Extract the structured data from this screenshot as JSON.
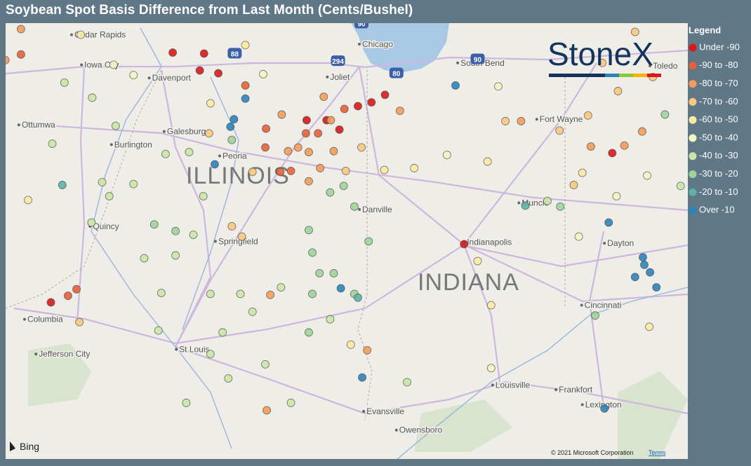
{
  "title": "Soybean Spot Basis Difference from Last Month (Cents/Bushel)",
  "legend": {
    "title": "Legend",
    "items": [
      {
        "label": "Under -90",
        "color": "#d7191c",
        "max": -90
      },
      {
        "label": "-90 to -80",
        "color": "#e8603a",
        "max": -80
      },
      {
        "label": "-80 to -70",
        "color": "#f39b5a",
        "max": -70
      },
      {
        "label": "-70 to -60",
        "color": "#fbc77f",
        "max": -60
      },
      {
        "label": "-60 to -50",
        "color": "#fde9a3",
        "max": -50
      },
      {
        "label": "-50 to -40",
        "color": "#f2f6c2",
        "max": -40
      },
      {
        "label": "-40 to -30",
        "color": "#c9e6a6",
        "max": -30
      },
      {
        "label": "-30 to -20",
        "color": "#9fd39a",
        "max": -20
      },
      {
        "label": "-20 to -10",
        "color": "#5fb0a6",
        "max": -10
      },
      {
        "label": "Over -10",
        "color": "#2b83ba"
      }
    ]
  },
  "map": {
    "brand": "StoneX",
    "provider": "Bing",
    "copyright": "© 2021 Microsoft Corporation",
    "terms": "Terms",
    "states": [
      "ILLINOIS",
      "INDIANA"
    ],
    "places": [
      {
        "name": "Cedar Rapids",
        "lon": -91.67,
        "lat": 41.98
      },
      {
        "name": "Iowa City",
        "lon": -91.53,
        "lat": 41.66
      },
      {
        "name": "Davenport",
        "lon": -90.58,
        "lat": 41.52
      },
      {
        "name": "Ottumwa",
        "lon": -92.41,
        "lat": 41.02
      },
      {
        "name": "Burlington",
        "lon": -91.11,
        "lat": 40.81
      },
      {
        "name": "Galesburg",
        "lon": -90.37,
        "lat": 40.95
      },
      {
        "name": "Peoria",
        "lon": -89.59,
        "lat": 40.69
      },
      {
        "name": "Quincy",
        "lon": -91.41,
        "lat": 39.94
      },
      {
        "name": "Springfield",
        "lon": -89.65,
        "lat": 39.78
      },
      {
        "name": "Columbia",
        "lon": -92.33,
        "lat": 38.95
      },
      {
        "name": "Jefferson City",
        "lon": -92.17,
        "lat": 38.58
      },
      {
        "name": "St Louis",
        "lon": -90.2,
        "lat": 38.63
      },
      {
        "name": "Chicago",
        "lon": -87.63,
        "lat": 41.88
      },
      {
        "name": "Joliet",
        "lon": -88.08,
        "lat": 41.53
      },
      {
        "name": "South Bend",
        "lon": -86.25,
        "lat": 41.68
      },
      {
        "name": "Toledo",
        "lon": -83.55,
        "lat": 41.65
      },
      {
        "name": "Fort Wayne",
        "lon": -85.14,
        "lat": 41.08
      },
      {
        "name": "Danville",
        "lon": -87.63,
        "lat": 40.12
      },
      {
        "name": "Muncie",
        "lon": -85.39,
        "lat": 40.19
      },
      {
        "name": "Indianapolis",
        "lon": -86.16,
        "lat": 39.77
      },
      {
        "name": "Dayton",
        "lon": -84.19,
        "lat": 39.76
      },
      {
        "name": "Cincinnati",
        "lon": -84.51,
        "lat": 39.1
      },
      {
        "name": "Louisville",
        "lon": -85.76,
        "lat": 38.25
      },
      {
        "name": "Frankfort",
        "lon": -84.87,
        "lat": 38.2
      },
      {
        "name": "Lexington",
        "lon": -84.5,
        "lat": 38.04
      },
      {
        "name": "Evansville",
        "lon": -87.57,
        "lat": 37.97
      },
      {
        "name": "Owensboro",
        "lon": -87.11,
        "lat": 37.77
      }
    ],
    "shields": [
      {
        "label": "90",
        "lon": -87.6,
        "lat": 42.1
      },
      {
        "label": "294",
        "lon": -87.93,
        "lat": 41.7
      },
      {
        "label": "80",
        "lon": -87.11,
        "lat": 41.57
      },
      {
        "label": "88",
        "lon": -89.38,
        "lat": 41.78
      },
      {
        "label": "90",
        "lon": -85.97,
        "lat": 41.72
      }
    ],
    "points": [
      {
        "lon": -89.81,
        "lat": 41.78,
        "value": -95
      },
      {
        "lon": -90.25,
        "lat": 41.79,
        "value": -95
      },
      {
        "lon": -89.87,
        "lat": 41.6,
        "value": -95
      },
      {
        "lon": -89.61,
        "lat": 41.57,
        "value": -95
      },
      {
        "lon": -88.09,
        "lat": 41.07,
        "value": -95
      },
      {
        "lon": -88.37,
        "lat": 41.07,
        "value": -95
      },
      {
        "lon": -87.91,
        "lat": 40.97,
        "value": -95
      },
      {
        "lon": -87.65,
        "lat": 41.22,
        "value": -95
      },
      {
        "lon": -87.46,
        "lat": 41.26,
        "value": -95
      },
      {
        "lon": -87.27,
        "lat": 41.34,
        "value": -95
      },
      {
        "lon": -84.08,
        "lat": 40.72,
        "value": -95
      },
      {
        "lon": -86.16,
        "lat": 39.75,
        "value": -95
      },
      {
        "lon": -91.96,
        "lat": 39.13,
        "value": -95
      },
      {
        "lon": -89.23,
        "lat": 41.44,
        "value": -85
      },
      {
        "lon": -92.38,
        "lat": 41.77,
        "value": -85
      },
      {
        "lon": -88.38,
        "lat": 40.93,
        "value": -85
      },
      {
        "lon": -88.21,
        "lat": 40.93,
        "value": -85
      },
      {
        "lon": -88.94,
        "lat": 40.98,
        "value": -85
      },
      {
        "lon": -88.74,
        "lat": 40.52,
        "value": -85
      },
      {
        "lon": -88.59,
        "lat": 40.53,
        "value": -85
      },
      {
        "lon": -88.95,
        "lat": 40.78,
        "value": -85
      },
      {
        "lon": -87.84,
        "lat": 41.19,
        "value": -85
      },
      {
        "lon": -91.72,
        "lat": 39.2,
        "value": -85
      },
      {
        "lon": -91.6,
        "lat": 39.27,
        "value": -85
      },
      {
        "lon": -92.38,
        "lat": 42.04,
        "value": -75
      },
      {
        "lon": -92.6,
        "lat": 41.71,
        "value": -75
      },
      {
        "lon": -88.72,
        "lat": 41.13,
        "value": -75
      },
      {
        "lon": -88.13,
        "lat": 41.32,
        "value": -75
      },
      {
        "lon": -88.03,
        "lat": 41.07,
        "value": -75
      },
      {
        "lon": -88.49,
        "lat": 40.78,
        "value": -75
      },
      {
        "lon": -88.34,
        "lat": 40.73,
        "value": -75
      },
      {
        "lon": -87.99,
        "lat": 40.74,
        "value": -75
      },
      {
        "lon": -88.63,
        "lat": 40.74,
        "value": -75
      },
      {
        "lon": -88.18,
        "lat": 40.56,
        "value": -75
      },
      {
        "lon": -88.34,
        "lat": 40.42,
        "value": -75
      },
      {
        "lon": -87.06,
        "lat": 41.17,
        "value": -75
      },
      {
        "lon": -85.36,
        "lat": 41.06,
        "value": -75
      },
      {
        "lon": -84.38,
        "lat": 40.79,
        "value": -75
      },
      {
        "lon": -83.91,
        "lat": 40.8,
        "value": -75
      },
      {
        "lon": -83.66,
        "lat": 40.95,
        "value": -75
      },
      {
        "lon": -88.88,
        "lat": 39.21,
        "value": -75
      },
      {
        "lon": -88.93,
        "lat": 37.98,
        "value": -75
      },
      {
        "lon": -87.52,
        "lat": 38.62,
        "value": -75
      },
      {
        "lon": -89.13,
        "lat": 40.52,
        "value": -65
      },
      {
        "lon": -87.82,
        "lat": 40.53,
        "value": -65
      },
      {
        "lon": -87.6,
        "lat": 40.78,
        "value": -65
      },
      {
        "lon": -89.28,
        "lat": 39.83,
        "value": -65
      },
      {
        "lon": -89.42,
        "lat": 39.94,
        "value": -65
      },
      {
        "lon": -85.58,
        "lat": 41.06,
        "value": -65
      },
      {
        "lon": -84.82,
        "lat": 40.96,
        "value": -65
      },
      {
        "lon": -84.42,
        "lat": 41.12,
        "value": -65
      },
      {
        "lon": -84.22,
        "lat": 41.68,
        "value": -65
      },
      {
        "lon": -84.0,
        "lat": 41.38,
        "value": -65
      },
      {
        "lon": -83.76,
        "lat": 42.01,
        "value": -65
      },
      {
        "lon": -83.51,
        "lat": 41.53,
        "value": -65
      },
      {
        "lon": -84.62,
        "lat": 40.38,
        "value": -65
      },
      {
        "lon": -91.56,
        "lat": 38.92,
        "value": -65
      },
      {
        "lon": -89.74,
        "lat": 40.93,
        "value": -65
      },
      {
        "lon": -89.23,
        "lat": 41.87,
        "value": -55
      },
      {
        "lon": -89.72,
        "lat": 41.25,
        "value": -55
      },
      {
        "lon": -87.28,
        "lat": 40.54,
        "value": -55
      },
      {
        "lon": -86.86,
        "lat": 40.56,
        "value": -55
      },
      {
        "lon": -85.83,
        "lat": 40.63,
        "value": -55
      },
      {
        "lon": -84.5,
        "lat": 40.51,
        "value": -55
      },
      {
        "lon": -85.97,
        "lat": 39.57,
        "value": -55
      },
      {
        "lon": -85.78,
        "lat": 39.1,
        "value": -55
      },
      {
        "lon": -87.75,
        "lat": 38.68,
        "value": -55
      },
      {
        "lon": -91.54,
        "lat": 41.98,
        "value": -55
      },
      {
        "lon": -92.28,
        "lat": 40.22,
        "value": -55
      },
      {
        "lon": -83.56,
        "lat": 38.87,
        "value": -55
      },
      {
        "lon": -91.08,
        "lat": 41.66,
        "value": -45
      },
      {
        "lon": -90.8,
        "lat": 41.55,
        "value": -45
      },
      {
        "lon": -88.98,
        "lat": 41.56,
        "value": -45
      },
      {
        "lon": -86.4,
        "lat": 40.7,
        "value": -45
      },
      {
        "lon": -85.68,
        "lat": 41.43,
        "value": -45
      },
      {
        "lon": -83.59,
        "lat": 40.48,
        "value": -45
      },
      {
        "lon": -84.55,
        "lat": 39.83,
        "value": -45
      },
      {
        "lon": -85.78,
        "lat": 38.43,
        "value": -45
      },
      {
        "lon": -84.02,
        "lat": 40.26,
        "value": -45
      },
      {
        "lon": -91.77,
        "lat": 41.47,
        "value": -35
      },
      {
        "lon": -91.38,
        "lat": 41.31,
        "value": -35
      },
      {
        "lon": -91.05,
        "lat": 41.01,
        "value": -35
      },
      {
        "lon": -90.35,
        "lat": 40.71,
        "value": -35
      },
      {
        "lon": -90.02,
        "lat": 40.73,
        "value": -35
      },
      {
        "lon": -89.82,
        "lat": 40.26,
        "value": -35
      },
      {
        "lon": -89.96,
        "lat": 39.85,
        "value": -35
      },
      {
        "lon": -90.21,
        "lat": 39.63,
        "value": -35
      },
      {
        "lon": -90.65,
        "lat": 39.6,
        "value": -35
      },
      {
        "lon": -90.41,
        "lat": 39.23,
        "value": -35
      },
      {
        "lon": -89.72,
        "lat": 39.22,
        "value": -35
      },
      {
        "lon": -89.3,
        "lat": 39.22,
        "value": -35
      },
      {
        "lon": -89.13,
        "lat": 39.03,
        "value": -35
      },
      {
        "lon": -89.55,
        "lat": 38.81,
        "value": -35
      },
      {
        "lon": -89.72,
        "lat": 38.58,
        "value": -35
      },
      {
        "lon": -89.47,
        "lat": 38.32,
        "value": -35
      },
      {
        "lon": -88.95,
        "lat": 38.47,
        "value": -35
      },
      {
        "lon": -90.06,
        "lat": 38.06,
        "value": -35
      },
      {
        "lon": -90.45,
        "lat": 38.83,
        "value": -35
      },
      {
        "lon": -90.8,
        "lat": 40.39,
        "value": -35
      },
      {
        "lon": -91.14,
        "lat": 40.26,
        "value": -35
      },
      {
        "lon": -91.39,
        "lat": 39.98,
        "value": -35
      },
      {
        "lon": -91.24,
        "lat": 40.41,
        "value": -35
      },
      {
        "lon": -91.94,
        "lat": 40.82,
        "value": -35
      },
      {
        "lon": -84.99,
        "lat": 40.21,
        "value": -35
      },
      {
        "lon": -83.12,
        "lat": 40.37,
        "value": -35
      },
      {
        "lon": -86.96,
        "lat": 38.28,
        "value": -35
      },
      {
        "lon": -88.59,
        "lat": 38.06,
        "value": -35
      },
      {
        "lon": -88.04,
        "lat": 38.95,
        "value": -35
      },
      {
        "lon": -88.73,
        "lat": 39.29,
        "value": -35
      },
      {
        "lon": -88.34,
        "lat": 39.9,
        "value": -25
      },
      {
        "lon": -88.29,
        "lat": 39.66,
        "value": -25
      },
      {
        "lon": -88.19,
        "lat": 39.44,
        "value": -25
      },
      {
        "lon": -88.04,
        "lat": 40.3,
        "value": -25
      },
      {
        "lon": -87.85,
        "lat": 40.37,
        "value": -25
      },
      {
        "lon": -87.7,
        "lat": 40.15,
        "value": -25
      },
      {
        "lon": -87.5,
        "lat": 39.78,
        "value": -25
      },
      {
        "lon": -87.99,
        "lat": 39.44,
        "value": -25
      },
      {
        "lon": -88.29,
        "lat": 39.22,
        "value": -25
      },
      {
        "lon": -88.34,
        "lat": 38.81,
        "value": -25
      },
      {
        "lon": -87.7,
        "lat": 39.22,
        "value": -25
      },
      {
        "lon": -90.21,
        "lat": 39.89,
        "value": -25
      },
      {
        "lon": -90.51,
        "lat": 39.96,
        "value": -25
      },
      {
        "lon": -89.42,
        "lat": 40.86,
        "value": -25
      },
      {
        "lon": -84.32,
        "lat": 38.99,
        "value": -25
      },
      {
        "lon": -84.81,
        "lat": 40.15,
        "value": -25
      },
      {
        "lon": -83.34,
        "lat": 41.13,
        "value": -25
      },
      {
        "lon": -91.8,
        "lat": 40.38,
        "value": -15
      },
      {
        "lon": -87.65,
        "lat": 39.18,
        "value": -15
      },
      {
        "lon": -85.3,
        "lat": 40.16,
        "value": -15
      },
      {
        "lon": -89.23,
        "lat": 41.3,
        "value": -5
      },
      {
        "lon": -89.39,
        "lat": 41.08,
        "value": -5
      },
      {
        "lon": -89.44,
        "lat": 41.0,
        "value": -5
      },
      {
        "lon": -89.66,
        "lat": 40.6,
        "value": -5
      },
      {
        "lon": -86.28,
        "lat": 41.44,
        "value": -5
      },
      {
        "lon": -84.13,
        "lat": 39.98,
        "value": -5
      },
      {
        "lon": -83.65,
        "lat": 39.61,
        "value": -5
      },
      {
        "lon": -83.63,
        "lat": 39.53,
        "value": -5
      },
      {
        "lon": -83.76,
        "lat": 39.4,
        "value": -5
      },
      {
        "lon": -83.55,
        "lat": 39.45,
        "value": -5
      },
      {
        "lon": -83.46,
        "lat": 39.29,
        "value": -5
      },
      {
        "lon": -87.89,
        "lat": 39.28,
        "value": -5
      },
      {
        "lon": -87.59,
        "lat": 38.33,
        "value": -5
      },
      {
        "lon": -84.19,
        "lat": 38.0,
        "value": -5
      }
    ]
  }
}
